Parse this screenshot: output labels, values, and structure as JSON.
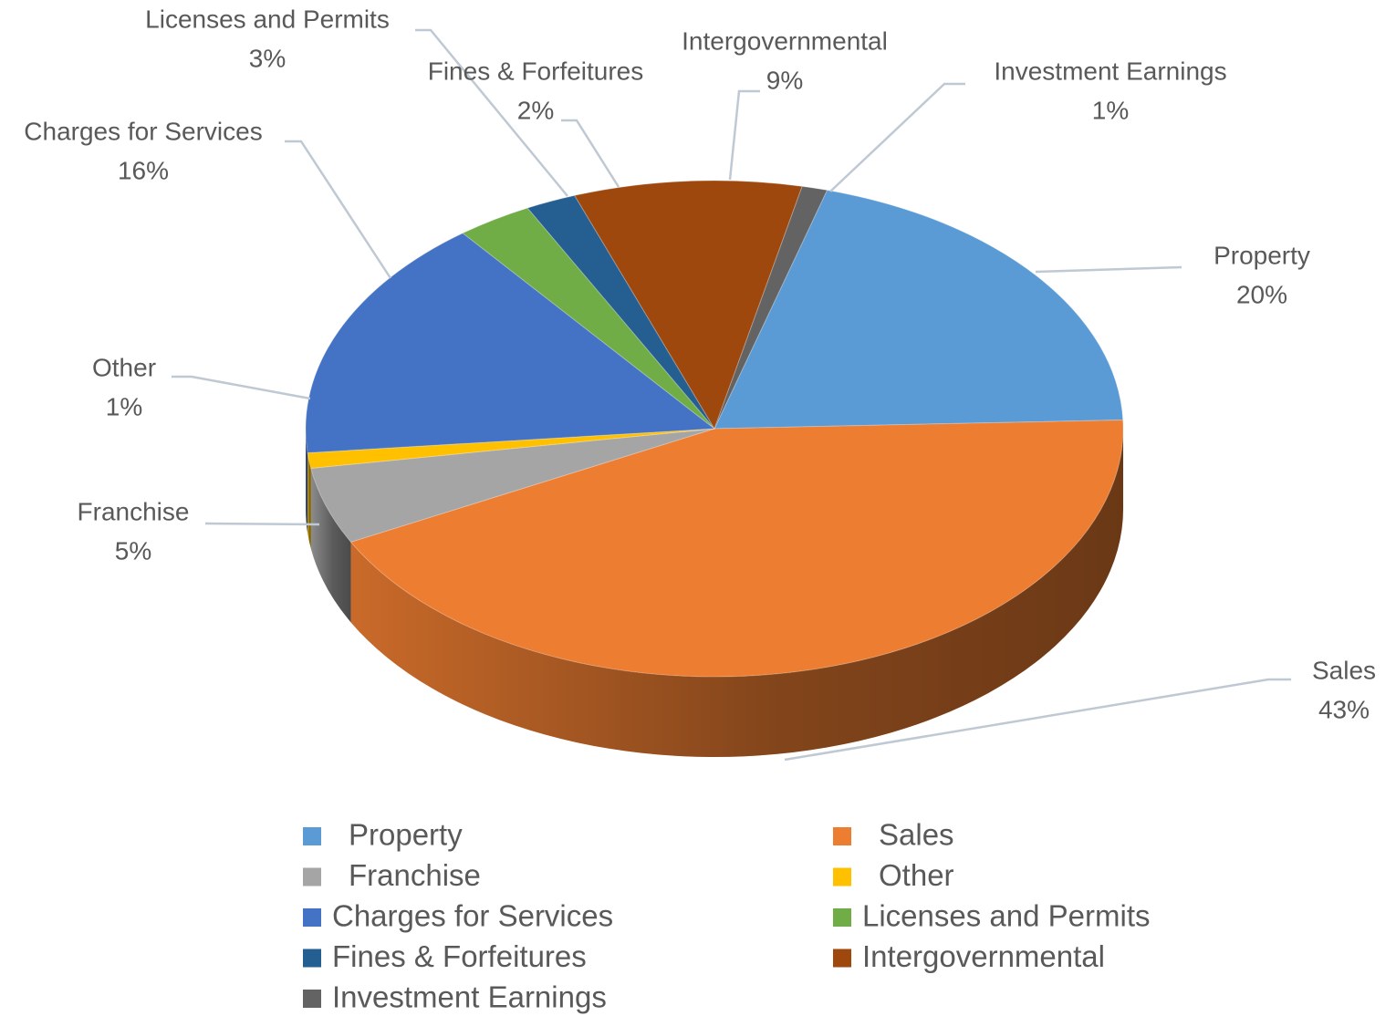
{
  "chart_data": {
    "type": "pie",
    "categories": [
      "Property",
      "Sales",
      "Franchise",
      "Other",
      "Charges for Services",
      "Licenses and Permits",
      "Fines & Forfeitures",
      "Intergovernmental",
      "Investment Earnings"
    ],
    "values": [
      20,
      43,
      5,
      1,
      16,
      3,
      2,
      9,
      1
    ],
    "value_labels": [
      "20%",
      "43%",
      "5%",
      "1%",
      "16%",
      "3%",
      "2%",
      "9%",
      "1%"
    ],
    "colors": [
      "#5b9bd5",
      "#ed7d31",
      "#a5a5a5",
      "#ffc000",
      "#4472c4",
      "#70ad47",
      "#255e91",
      "#9e480e",
      "#636363"
    ],
    "legend": "bottom"
  }
}
